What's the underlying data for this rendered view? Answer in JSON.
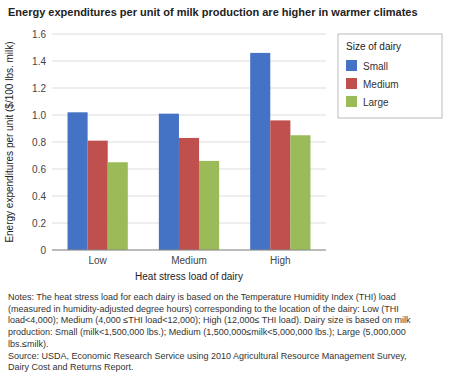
{
  "chart_data": {
    "type": "bar",
    "title": "Energy expenditures per unit of milk production are higher in warmer climates",
    "x_label": "Heat stress load of dairy",
    "y_label": "Energy expenditures per unit ($/100 lbs. milk)",
    "legend_title": "Size of dairy",
    "categories": [
      "Low",
      "Medium",
      "High"
    ],
    "series": [
      {
        "name": "Small",
        "color": "#4472C4",
        "values": [
          1.02,
          1.01,
          1.46
        ]
      },
      {
        "name": "Medium",
        "color": "#C0504D",
        "values": [
          0.81,
          0.83,
          0.96
        ]
      },
      {
        "name": "Large",
        "color": "#9BBB59",
        "values": [
          0.65,
          0.66,
          0.85
        ]
      }
    ],
    "ylim": [
      0,
      1.6
    ],
    "yticks": [
      0,
      0.2,
      0.4,
      0.6,
      0.8,
      {
        "value": 1,
        "label": "1.0"
      },
      1.2,
      1.4,
      1.6
    ],
    "grid": true,
    "legend": "right",
    "annotations": [
      "Notes: The heat stress load for each dairy is based on the Temperature Humidity Index (THI) load",
      "(measured in humidity-adjusted degree hours) corresponding to the location of the dairy: Low (THI",
      "load<4,000); Medium (4,000 ≤THI load<12,000); High (12,000≤ THI load). Dairy size is based on milk",
      "production: Small (milk<1,500,000 lbs.); Medium (1,500,000≤milk<5,000,000 lbs.); Large (5,000,000",
      "lbs.≤milk).",
      "Source: USDA, Economic Research Service using 2010 Agricultural Resource Management Survey,",
      "Dairy Cost and Returns Report."
    ]
  }
}
